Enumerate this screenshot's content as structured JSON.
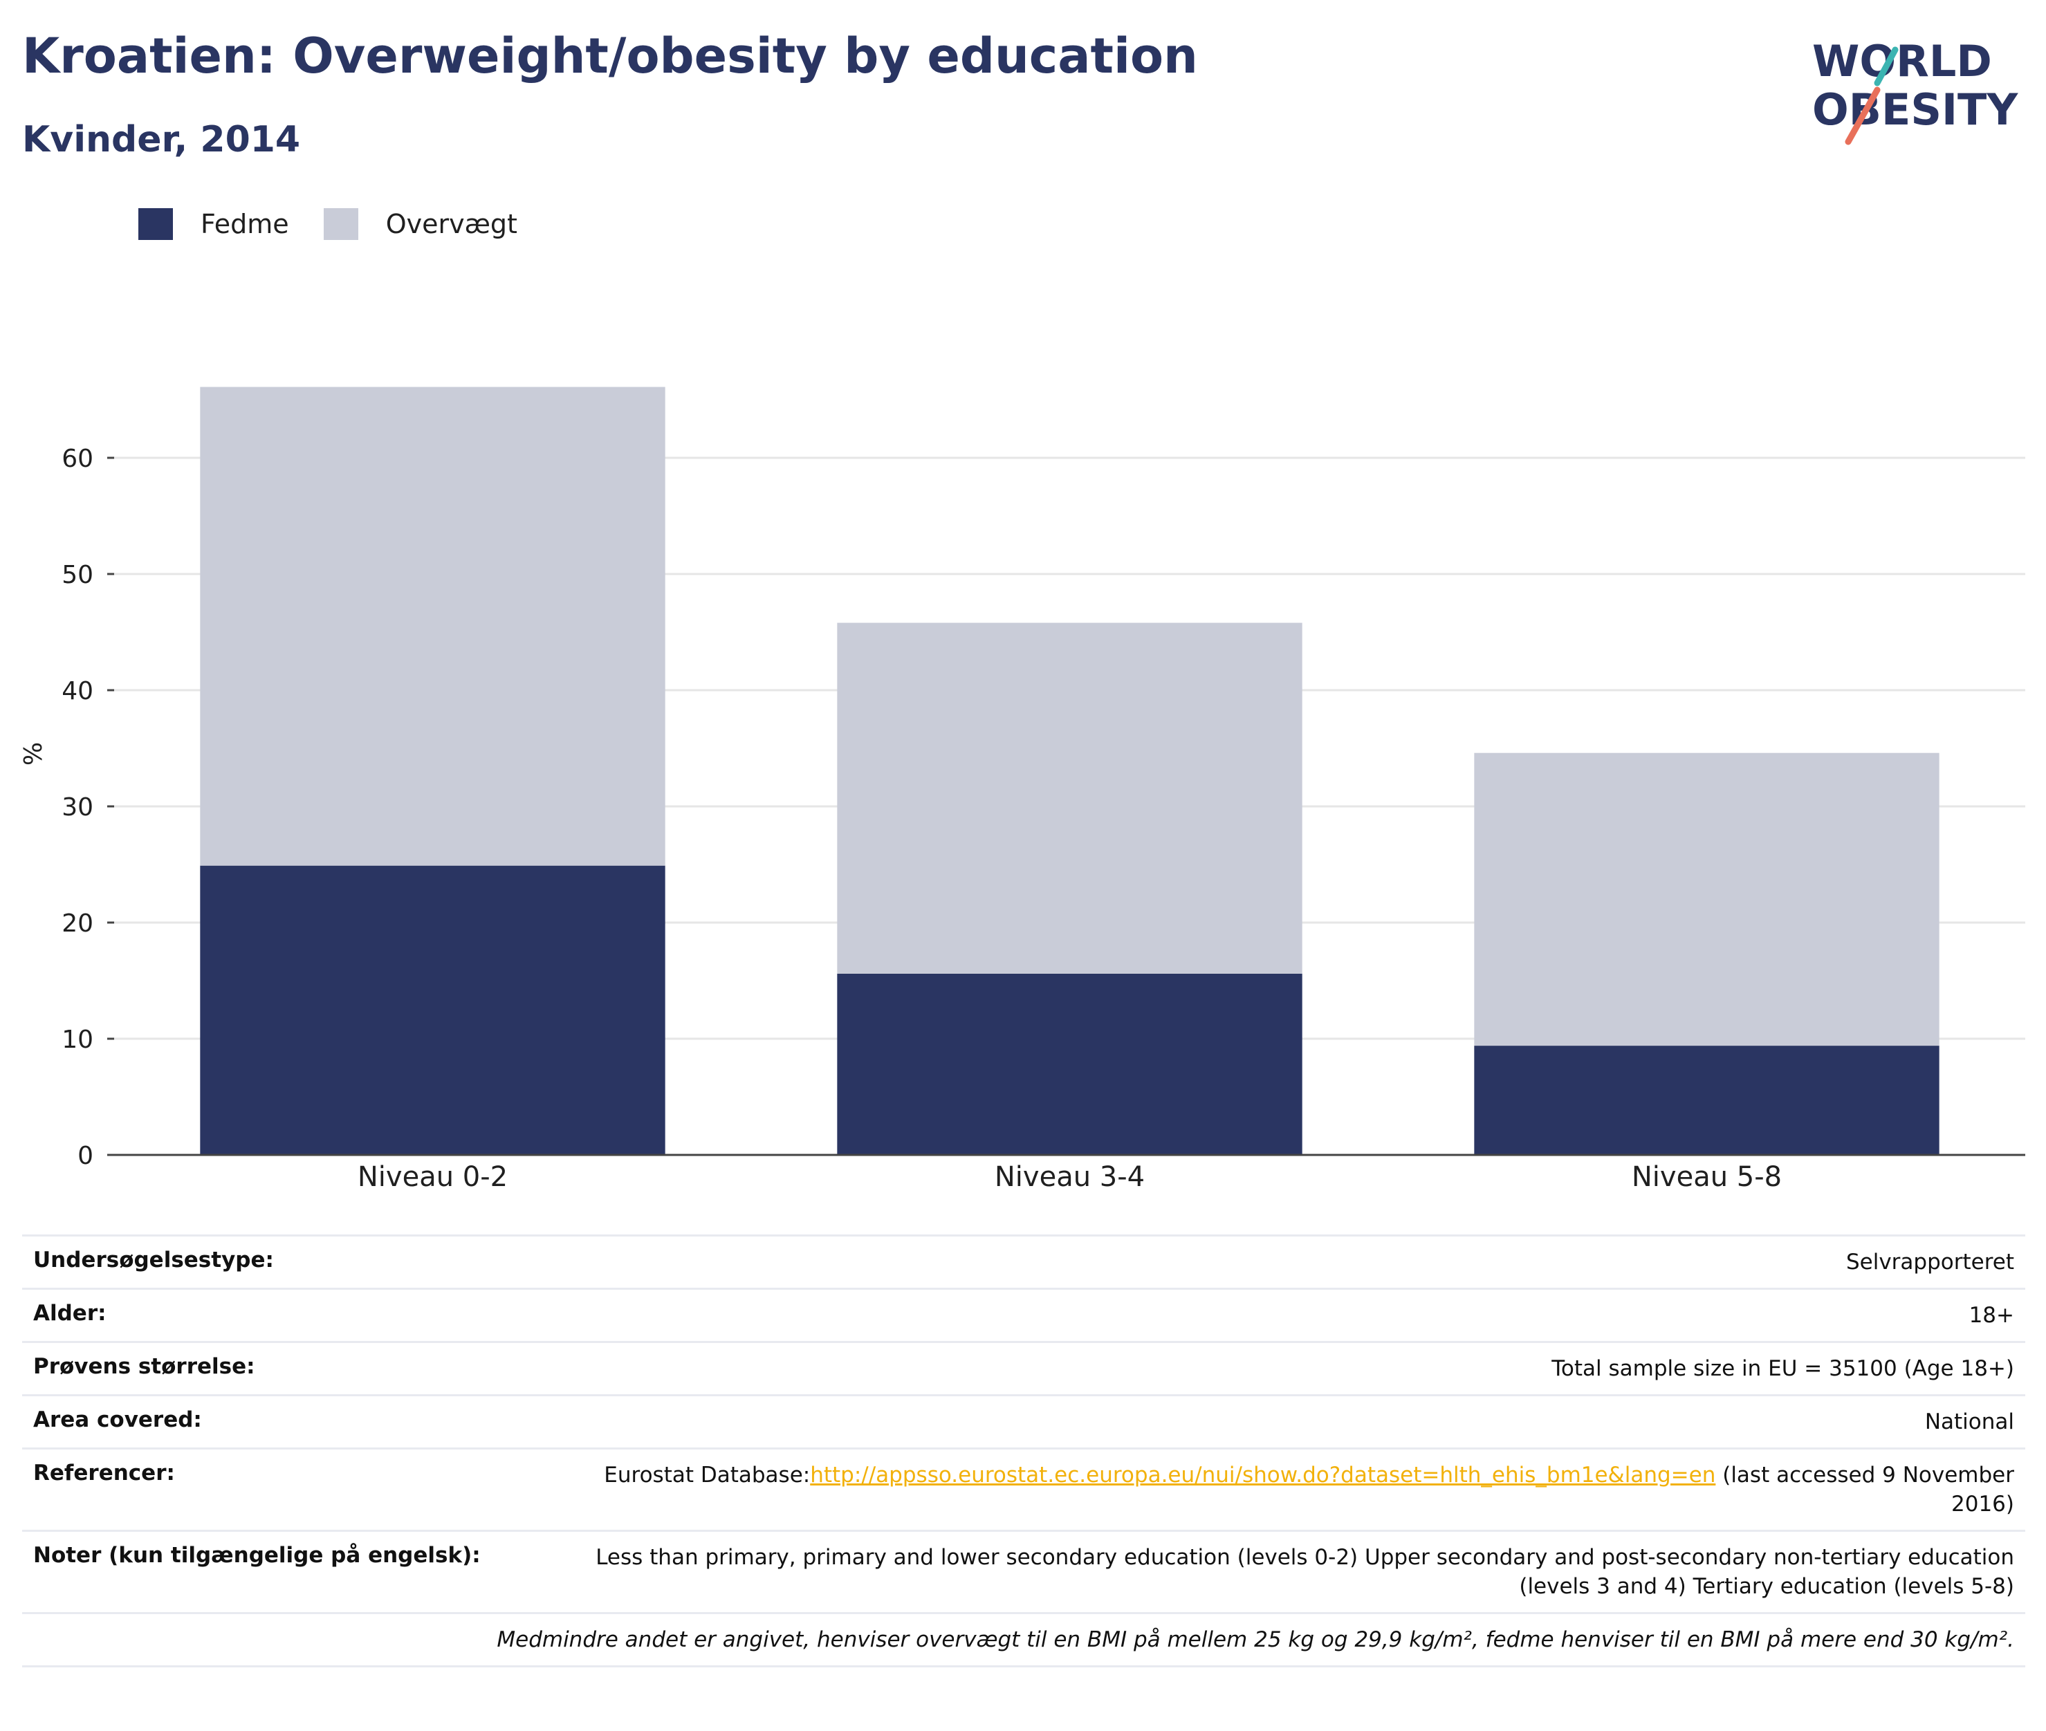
{
  "header": {
    "title": "Kroatien: Overweight/obesity by education",
    "subtitle": "Kvinder, 2014"
  },
  "logo": {
    "line1": "WORLD",
    "line2": "OBESITY"
  },
  "colors": {
    "fedme": "#2a3562",
    "overvaegt": "#c9ccd8",
    "title": "#2a3562",
    "link": "#f2b10b"
  },
  "chart_data": {
    "type": "bar",
    "stacked": true,
    "categories": [
      "Niveau 0-2",
      "Niveau 3-4",
      "Niveau 5-8"
    ],
    "series": [
      {
        "name": "Fedme",
        "values": [
          24.9,
          15.6,
          9.4
        ]
      },
      {
        "name": "Overvægt",
        "values": [
          41.2,
          30.2,
          25.2
        ]
      }
    ],
    "ylabel": "%",
    "ylim": [
      0,
      67
    ],
    "yticks": [
      0,
      10,
      20,
      30,
      40,
      50,
      60
    ],
    "grid": true,
    "legend_position": "top-left"
  },
  "meta": {
    "rows": [
      {
        "label": "Undersøgelsestype:",
        "value": "Selvrapporteret"
      },
      {
        "label": "Alder:",
        "value": "18+"
      },
      {
        "label": "Prøvens størrelse:",
        "value": "Total sample size in EU = 35100 (Age 18+)"
      },
      {
        "label": "Area covered:",
        "value": "National"
      }
    ],
    "references": {
      "label": "Referencer:",
      "prefix": "Eurostat Database:",
      "link": "http://appsso.eurostat.ec.europa.eu/nui/show.do?dataset=hlth_ehis_bm1e&lang=en",
      "suffix": " (last accessed 9 November 2016)"
    },
    "notes": {
      "label": "Noter (kun tilgængelige på engelsk):",
      "value": "Less than primary, primary and lower secondary education (levels 0-2) Upper secondary and post-secondary non-tertiary education (levels 3 and 4) Tertiary education (levels 5-8)"
    },
    "footnote": "Medmindre andet er angivet, henviser overvægt til en BMI på mellem 25 kg og 29,9 kg/m², fedme henviser til en BMI på mere end 30 kg/m²."
  }
}
